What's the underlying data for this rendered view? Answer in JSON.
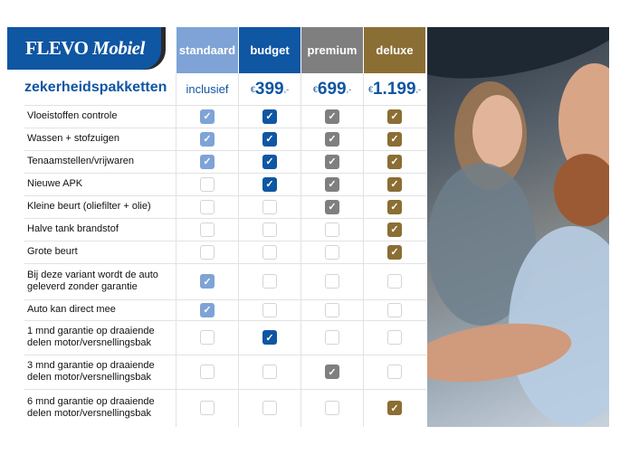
{
  "logo": {
    "brand": "FLEVO",
    "brand_italic": "Mobiel"
  },
  "title": "zekerheidspakketten",
  "colors": {
    "standaard": "#7fa3d6",
    "budget": "#0f56a3",
    "premium": "#7f7f7f",
    "deluxe": "#8b6e34"
  },
  "columns": [
    {
      "key": "standaard",
      "label": "standaard",
      "price": "inclusief"
    },
    {
      "key": "budget",
      "label": "budget",
      "currency": "€",
      "price": "399",
      "suffix": ",-"
    },
    {
      "key": "premium",
      "label": "premium",
      "currency": "€",
      "price": "699",
      "suffix": ",-"
    },
    {
      "key": "deluxe",
      "label": "deluxe",
      "currency": "€",
      "price": "1.199",
      "suffix": ",-"
    }
  ],
  "rows": [
    {
      "label": "Vloeistoffen controle",
      "checks": [
        true,
        true,
        true,
        true
      ]
    },
    {
      "label": "Wassen + stofzuigen",
      "checks": [
        true,
        true,
        true,
        true
      ]
    },
    {
      "label": "Tenaamstellen/vrijwaren",
      "checks": [
        true,
        true,
        true,
        true
      ]
    },
    {
      "label": "Nieuwe APK",
      "checks": [
        false,
        true,
        true,
        true
      ]
    },
    {
      "label": "Kleine beurt (oliefilter + olie)",
      "checks": [
        false,
        false,
        true,
        true
      ]
    },
    {
      "label": "Halve tank brandstof",
      "checks": [
        false,
        false,
        false,
        true
      ]
    },
    {
      "label": "Grote beurt",
      "checks": [
        false,
        false,
        false,
        true
      ]
    },
    {
      "label": "Bij deze variant wordt de auto geleverd zonder garantie",
      "checks": [
        true,
        false,
        false,
        false
      ]
    },
    {
      "label": "Auto kan direct mee",
      "checks": [
        true,
        false,
        false,
        false
      ]
    },
    {
      "label": "1 mnd garantie op draaiende delen motor/versnellingsbak",
      "checks": [
        false,
        true,
        false,
        false
      ]
    },
    {
      "label": "3 mnd garantie op draaiende delen motor/versnellingsbak",
      "checks": [
        false,
        false,
        true,
        false
      ]
    },
    {
      "label": "6 mnd garantie op draaiende delen motor/versnellingsbak",
      "checks": [
        false,
        false,
        false,
        true
      ]
    }
  ],
  "icons": {
    "check": "check-icon"
  }
}
